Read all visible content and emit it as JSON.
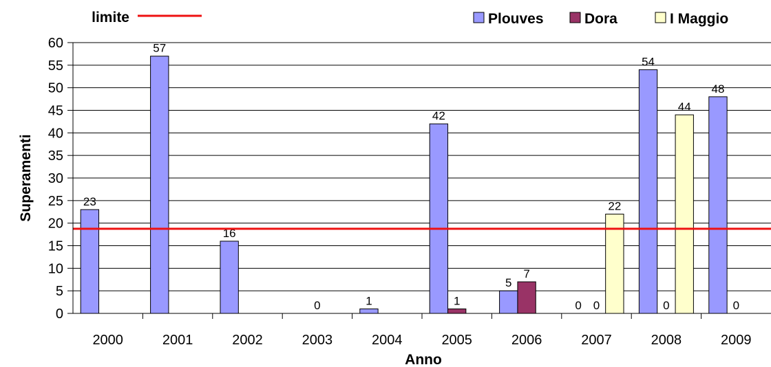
{
  "chart_data": {
    "type": "bar",
    "title": "",
    "xlabel": "Anno",
    "ylabel": "Superamenti",
    "categories": [
      "2000",
      "2001",
      "2002",
      "2003",
      "2004",
      "2005",
      "2006",
      "2007",
      "2008",
      "2009"
    ],
    "series": [
      {
        "name": "Plouves",
        "color": "#9999ff",
        "values": [
          23,
          57,
          16,
          null,
          1,
          42,
          5,
          0,
          54,
          48
        ]
      },
      {
        "name": "Dora",
        "color": "#993366",
        "values": [
          null,
          null,
          null,
          0,
          null,
          1,
          7,
          0,
          0,
          0
        ]
      },
      {
        "name": "I Maggio",
        "color": "#ffffcc",
        "values": [
          null,
          null,
          null,
          null,
          null,
          null,
          null,
          22,
          44,
          null
        ]
      }
    ],
    "reference_line": {
      "label": "limite",
      "value": 18.75,
      "color": "#ee1111"
    },
    "yticks": [
      0,
      5,
      10,
      15,
      20,
      25,
      30,
      35,
      40,
      45,
      50,
      55,
      60
    ],
    "ylim": [
      0,
      60
    ],
    "grid": true,
    "legend_position": "top"
  }
}
